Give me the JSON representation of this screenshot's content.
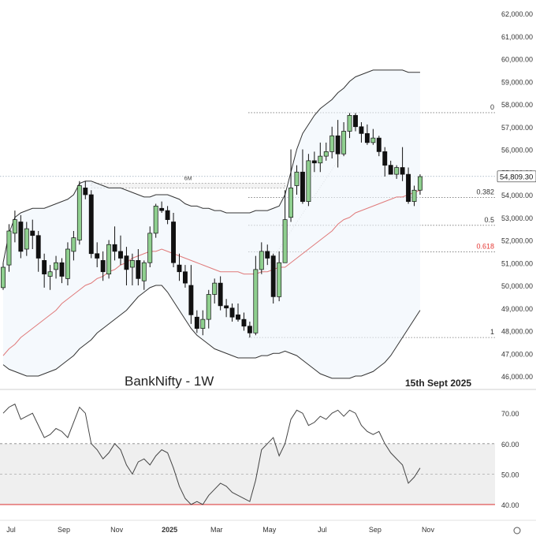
{
  "chart_data": {
    "type": "candlestick",
    "title": "BankNifty - 1W",
    "date_label": "15th Sept 2025",
    "last_price_label": "54,809.30",
    "six_month_label": "6M",
    "y_ticks": [
      "62,000.00",
      "61,000.00",
      "60,000.00",
      "59,000.00",
      "58,000.00",
      "57,000.00",
      "56,000.00",
      "55,000.00",
      "54,000.00",
      "53,000.00",
      "52,000.00",
      "51,000.00",
      "50,000.00",
      "49,000.00",
      "48,000.00",
      "47,000.00",
      "46,000.00"
    ],
    "y_tick_values": [
      62000,
      61000,
      60000,
      59000,
      58000,
      57000,
      56000,
      55000,
      54000,
      53000,
      52000,
      51000,
      50000,
      49000,
      48000,
      47000,
      46000
    ],
    "ylim": [
      45500,
      62500
    ],
    "x_ticks": [
      "Jul",
      "Sep",
      "Nov",
      "2025",
      "Mar",
      "May",
      "Jul",
      "Sep",
      "Nov"
    ],
    "x_tick_weeks": [
      0,
      9,
      18,
      27,
      35,
      44,
      53,
      62,
      71
    ],
    "fib_levels": [
      {
        "label": "0",
        "value": 57620,
        "color": "#333333"
      },
      {
        "label": "0.382",
        "value": 53880,
        "color": "#333333"
      },
      {
        "label": "0.5",
        "value": 52650,
        "color": "#333333"
      },
      {
        "label": "0.618",
        "value": 51480,
        "color": "#e53935"
      },
      {
        "label": "1",
        "value": 47700,
        "color": "#333333"
      }
    ],
    "candles": [
      [
        0,
        49900,
        51000,
        49800,
        50800
      ],
      [
        1,
        50900,
        52700,
        50600,
        52400
      ],
      [
        2,
        52300,
        53300,
        51900,
        52900
      ],
      [
        3,
        52800,
        53100,
        51200,
        51500
      ],
      [
        4,
        51600,
        52800,
        51300,
        52500
      ],
      [
        5,
        52400,
        52900,
        51600,
        52200
      ],
      [
        6,
        52200,
        52400,
        50600,
        51200
      ],
      [
        7,
        51100,
        51400,
        49900,
        50500
      ],
      [
        8,
        50400,
        50900,
        49800,
        50600
      ],
      [
        9,
        50700,
        51300,
        50300,
        51000
      ],
      [
        10,
        51000,
        51200,
        50100,
        50400
      ],
      [
        11,
        50300,
        51900,
        50000,
        51600
      ],
      [
        12,
        51500,
        52400,
        51100,
        52100
      ],
      [
        13,
        52000,
        54600,
        51800,
        54400
      ],
      [
        14,
        54300,
        54600,
        53800,
        54000
      ],
      [
        15,
        54000,
        54200,
        51200,
        51400
      ],
      [
        16,
        51400,
        51900,
        50800,
        51200
      ],
      [
        17,
        51100,
        51500,
        50200,
        50600
      ],
      [
        18,
        50500,
        52000,
        50300,
        51800
      ],
      [
        19,
        51800,
        52600,
        51100,
        51500
      ],
      [
        20,
        51500,
        52200,
        50900,
        51200
      ],
      [
        21,
        51300,
        51700,
        50000,
        50700
      ],
      [
        22,
        50800,
        51400,
        50000,
        51100
      ],
      [
        23,
        51100,
        51600,
        50000,
        50300
      ],
      [
        24,
        50200,
        51100,
        49800,
        51000
      ],
      [
        25,
        51000,
        52600,
        50800,
        52300
      ],
      [
        26,
        52300,
        53600,
        52100,
        53500
      ],
      [
        27,
        53400,
        53700,
        53200,
        53300
      ],
      [
        28,
        53300,
        53500,
        52700,
        52900
      ],
      [
        29,
        52800,
        53200,
        50800,
        51000
      ],
      [
        30,
        50900,
        51400,
        50200,
        50600
      ],
      [
        31,
        50600,
        50900,
        49900,
        50100
      ],
      [
        32,
        50000,
        50900,
        48300,
        48700
      ],
      [
        33,
        48600,
        48900,
        47900,
        48100
      ],
      [
        34,
        48100,
        48900,
        47800,
        48500
      ],
      [
        35,
        48500,
        49800,
        48100,
        49600
      ],
      [
        36,
        49600,
        50300,
        49200,
        50100
      ],
      [
        37,
        50100,
        50400,
        48900,
        49100
      ],
      [
        38,
        49100,
        49400,
        48600,
        49000
      ],
      [
        39,
        49000,
        49200,
        48400,
        48600
      ],
      [
        40,
        48700,
        49200,
        48400,
        48500
      ],
      [
        41,
        48500,
        48800,
        48000,
        48200
      ],
      [
        42,
        48200,
        48400,
        47700,
        47900
      ],
      [
        43,
        47900,
        51300,
        47800,
        50700
      ],
      [
        44,
        50700,
        51900,
        50500,
        51500
      ],
      [
        45,
        51500,
        51800,
        50900,
        51200
      ],
      [
        46,
        51300,
        51400,
        49200,
        49500
      ],
      [
        47,
        49500,
        51500,
        49300,
        51000
      ],
      [
        48,
        51000,
        54200,
        51000,
        52900
      ],
      [
        49,
        53000,
        56000,
        52800,
        54300
      ],
      [
        50,
        54400,
        55300,
        54000,
        55000
      ],
      [
        51,
        55000,
        56000,
        53600,
        53700
      ],
      [
        52,
        53700,
        55800,
        53500,
        55500
      ],
      [
        53,
        55500,
        55900,
        55000,
        55400
      ],
      [
        54,
        55400,
        56300,
        55000,
        55700
      ],
      [
        55,
        55700,
        56300,
        55500,
        55900
      ],
      [
        56,
        55900,
        57000,
        55600,
        56600
      ],
      [
        57,
        56600,
        57300,
        55200,
        55800
      ],
      [
        58,
        55800,
        57200,
        55700,
        56800
      ],
      [
        59,
        56800,
        57600,
        56500,
        57500
      ],
      [
        60,
        57500,
        57600,
        56800,
        57000
      ],
      [
        61,
        57000,
        57200,
        56300,
        56700
      ],
      [
        62,
        56700,
        57100,
        56200,
        56300
      ],
      [
        63,
        56300,
        56900,
        56200,
        56500
      ],
      [
        64,
        56500,
        56600,
        55700,
        55900
      ],
      [
        65,
        55900,
        56100,
        54800,
        55300
      ],
      [
        66,
        55300,
        55500,
        54900,
        54900
      ],
      [
        67,
        54900,
        55300,
        54700,
        55200
      ],
      [
        68,
        55200,
        56100,
        54600,
        54900
      ],
      [
        69,
        54900,
        55200,
        53600,
        53700
      ],
      [
        70,
        53700,
        54400,
        53500,
        54200
      ],
      [
        71,
        54200,
        54900,
        54000,
        54800
      ]
    ],
    "bb_upper": [
      51000,
      52300,
      53000,
      53200,
      53300,
      53400,
      53400,
      53400,
      53500,
      53600,
      53700,
      53800,
      54000,
      54500,
      54600,
      54600,
      54500,
      54400,
      54300,
      54300,
      54300,
      54200,
      54100,
      54000,
      53900,
      53900,
      54000,
      54000,
      54000,
      53900,
      53800,
      53600,
      53500,
      53500,
      53400,
      53400,
      53300,
      53300,
      53200,
      53200,
      53200,
      53200,
      53200,
      53300,
      53300,
      53300,
      53400,
      53500,
      54000,
      55000,
      56000,
      56700,
      57100,
      57500,
      57800,
      58000,
      58200,
      58500,
      58700,
      59000,
      59200,
      59300,
      59400,
      59500,
      59500,
      59500,
      59500,
      59500,
      59500,
      59400,
      59400,
      59400
    ],
    "bb_lower": [
      46500,
      46300,
      46200,
      46100,
      46000,
      46000,
      46000,
      46100,
      46200,
      46300,
      46500,
      46700,
      46900,
      47200,
      47400,
      47600,
      47900,
      48100,
      48300,
      48500,
      48700,
      48900,
      49200,
      49500,
      49700,
      49900,
      50000,
      50000,
      49700,
      49300,
      48900,
      48500,
      48100,
      47800,
      47600,
      47400,
      47200,
      47100,
      47000,
      46900,
      46800,
      46800,
      46800,
      46800,
      46900,
      46900,
      47000,
      47000,
      47100,
      47000,
      46900,
      46700,
      46500,
      46300,
      46100,
      46000,
      45900,
      45900,
      45900,
      45900,
      46000,
      46000,
      46100,
      46200,
      46400,
      46600,
      46900,
      47300,
      47700,
      48100,
      48500,
      48900
    ],
    "sma": [
      46900,
      47200,
      47400,
      47700,
      47900,
      48100,
      48300,
      48500,
      48700,
      48900,
      49200,
      49400,
      49600,
      49800,
      50000,
      50100,
      50300,
      50400,
      50600,
      50700,
      50900,
      51000,
      51200,
      51300,
      51400,
      51500,
      51500,
      51600,
      51500,
      51400,
      51300,
      51200,
      51100,
      51000,
      50900,
      50800,
      50700,
      50600,
      50600,
      50600,
      50600,
      50500,
      50500,
      50500,
      50600,
      50600,
      50700,
      50800,
      50800,
      51000,
      51200,
      51400,
      51600,
      51800,
      52000,
      52200,
      52400,
      52700,
      52900,
      53000,
      53200,
      53300,
      53400,
      53500,
      53600,
      53700,
      53800,
      53900,
      53900,
      54000,
      54100,
      54200
    ],
    "rsi": {
      "y_ticks": [
        "70.00",
        "60.00",
        "50.00",
        "40.00"
      ],
      "y_tick_values": [
        70,
        60,
        50,
        40
      ],
      "ylim": [
        37,
        76
      ],
      "overbought": 60,
      "oversold": 40,
      "mid": 50,
      "values": [
        70,
        72,
        73,
        68,
        69,
        70,
        66,
        62,
        63,
        65,
        64,
        62,
        67,
        72,
        70,
        60,
        58,
        55,
        57,
        60,
        58,
        53,
        50,
        54,
        55,
        53,
        56,
        58,
        57,
        52,
        46,
        42,
        40,
        41,
        40,
        43,
        45,
        47,
        46,
        44,
        43,
        42,
        41,
        48,
        58,
        60,
        62,
        56,
        60,
        68,
        71,
        70,
        66,
        67,
        69,
        68,
        70,
        71,
        69,
        71,
        70,
        66,
        64,
        63,
        64,
        60,
        57,
        55,
        53,
        47,
        49,
        52
      ]
    },
    "colors": {
      "up": "#8fcf8f",
      "down": "#111111",
      "bb": "#333333",
      "sma": "#e07a7a",
      "price_tag_bg": "#ffffff"
    }
  }
}
